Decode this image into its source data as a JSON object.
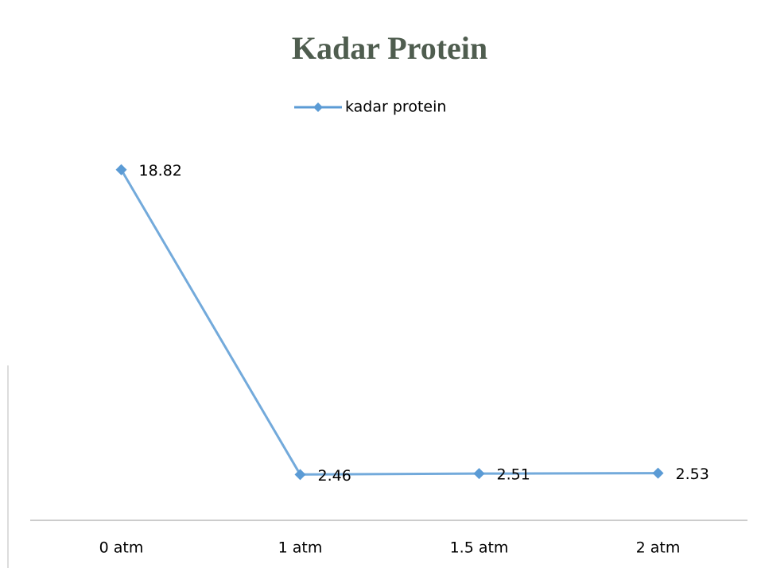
{
  "chart_data": {
    "type": "line",
    "title": "Kadar Protein",
    "categories": [
      "0 atm",
      "1 atm",
      "1.5 atm",
      "2 atm"
    ],
    "series": [
      {
        "name": "kadar protein",
        "color": "#5b9bd5",
        "values": [
          18.82,
          2.46,
          2.51,
          2.53
        ]
      }
    ],
    "ylim": [
      0,
      20
    ],
    "legend": "top"
  }
}
